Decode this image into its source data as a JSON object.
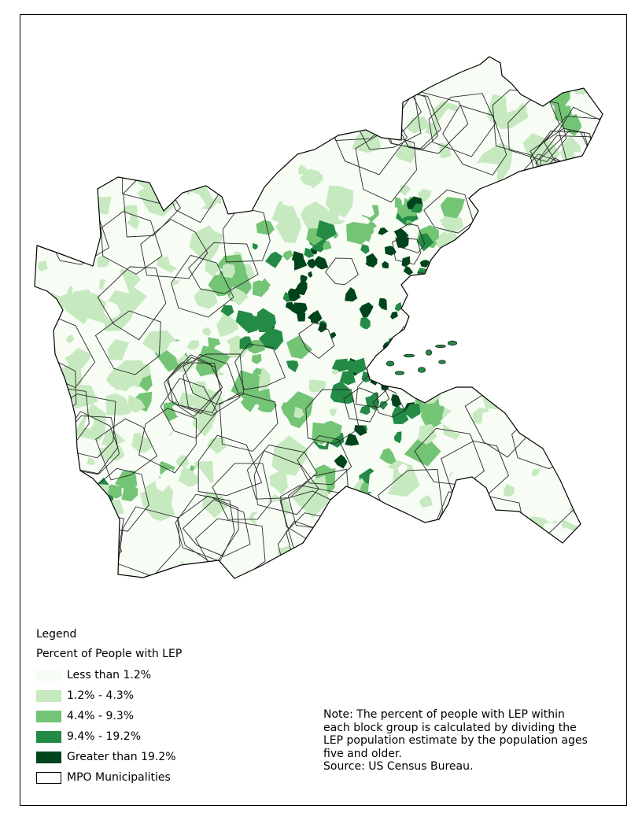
{
  "legend": {
    "title": "Legend",
    "subtitle": "Percent of People with LEP",
    "items": [
      {
        "label": "Less than 1.2%",
        "color": "#f7fcf5"
      },
      {
        "label": "1.2% - 4.3%",
        "color": "#c7e9c0"
      },
      {
        "label": "4.4% - 9.3%",
        "color": "#74c476"
      },
      {
        "label": "9.4% - 19.2%",
        "color": "#238b45"
      },
      {
        "label": "Greater than 19.2%",
        "color": "#00441b"
      },
      {
        "label": "MPO Municipalities",
        "color": "#ffffff"
      }
    ]
  },
  "note": {
    "lines": [
      "Note: The percent of people with LEP within",
      "each block group is calculated by dividing the",
      "LEP population estimate by the population ages",
      "five and older."
    ],
    "source": "Source: US Census Bureau."
  }
}
